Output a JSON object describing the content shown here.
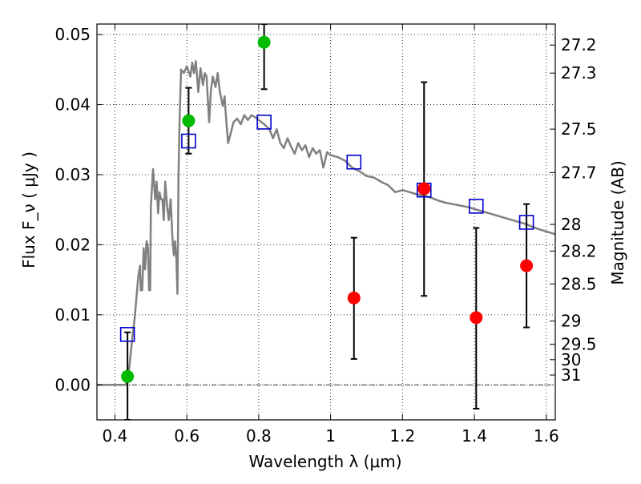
{
  "chart_data": {
    "type": "scatter",
    "xlabel": "Wavelength  λ (μm)",
    "ylabel_left": "Flux  F_ν  ( μJy )",
    "ylabel_right": "Magnitude (AB)",
    "xlim": [
      0.35,
      1.625
    ],
    "ylim": [
      -0.005,
      0.0515
    ],
    "x_ticks": [
      {
        "value": 0.4,
        "label": "0.4"
      },
      {
        "value": 0.6,
        "label": "0.6"
      },
      {
        "value": 0.8,
        "label": "0.8"
      },
      {
        "value": 1.0,
        "label": "1"
      },
      {
        "value": 1.2,
        "label": "1.2"
      },
      {
        "value": 1.4,
        "label": "1.4"
      },
      {
        "value": 1.6,
        "label": "1.6"
      }
    ],
    "y_ticks": [
      {
        "value": 0.0,
        "label": "0.00"
      },
      {
        "value": 0.01,
        "label": "0.01"
      },
      {
        "value": 0.02,
        "label": "0.02"
      },
      {
        "value": 0.03,
        "label": "0.03"
      },
      {
        "value": 0.04,
        "label": "0.04"
      },
      {
        "value": 0.05,
        "label": "0.05"
      }
    ],
    "magnitude_ticks": [
      {
        "flux": 0.0485,
        "label": "27.2"
      },
      {
        "flux": 0.0445,
        "label": "27.3"
      },
      {
        "flux": 0.0365,
        "label": "27.5"
      },
      {
        "flux": 0.0303,
        "label": "27.7"
      },
      {
        "flux": 0.0229,
        "label": "28"
      },
      {
        "flux": 0.0191,
        "label": "28.2"
      },
      {
        "flux": 0.0144,
        "label": "28.5"
      },
      {
        "flux": 0.0091,
        "label": "29"
      },
      {
        "flux": 0.0058,
        "label": "29.5"
      },
      {
        "flux": 0.0036,
        "label": "30"
      },
      {
        "flux": 0.0014,
        "label": "31"
      }
    ],
    "grid": true,
    "model_spectrum": {
      "color": "#808080",
      "points": [
        [
          0.35,
          0.0
        ],
        [
          0.43,
          0.0
        ],
        [
          0.435,
          0.0012
        ],
        [
          0.44,
          0.0025
        ],
        [
          0.445,
          0.005
        ],
        [
          0.45,
          0.0075
        ],
        [
          0.455,
          0.0095
        ],
        [
          0.46,
          0.0125
        ],
        [
          0.465,
          0.0155
        ],
        [
          0.47,
          0.017
        ],
        [
          0.472,
          0.0135
        ],
        [
          0.476,
          0.0135
        ],
        [
          0.48,
          0.0195
        ],
        [
          0.484,
          0.0165
        ],
        [
          0.488,
          0.0205
        ],
        [
          0.492,
          0.0195
        ],
        [
          0.495,
          0.0135
        ],
        [
          0.498,
          0.0135
        ],
        [
          0.5,
          0.0255
        ],
        [
          0.506,
          0.0308
        ],
        [
          0.512,
          0.0265
        ],
        [
          0.516,
          0.029
        ],
        [
          0.52,
          0.0245
        ],
        [
          0.524,
          0.0275
        ],
        [
          0.528,
          0.0265
        ],
        [
          0.532,
          0.0265
        ],
        [
          0.536,
          0.0235
        ],
        [
          0.54,
          0.029
        ],
        [
          0.545,
          0.0255
        ],
        [
          0.55,
          0.0235
        ],
        [
          0.555,
          0.0265
        ],
        [
          0.56,
          0.021
        ],
        [
          0.564,
          0.0185
        ],
        [
          0.567,
          0.0205
        ],
        [
          0.571,
          0.018
        ],
        [
          0.574,
          0.013
        ],
        [
          0.577,
          0.03
        ],
        [
          0.58,
          0.038
        ],
        [
          0.584,
          0.045
        ],
        [
          0.592,
          0.0445
        ],
        [
          0.6,
          0.0455
        ],
        [
          0.61,
          0.044
        ],
        [
          0.615,
          0.046
        ],
        [
          0.62,
          0.0445
        ],
        [
          0.625,
          0.0462
        ],
        [
          0.632,
          0.0418
        ],
        [
          0.638,
          0.0452
        ],
        [
          0.645,
          0.0428
        ],
        [
          0.65,
          0.0445
        ],
        [
          0.655,
          0.044
        ],
        [
          0.662,
          0.0375
        ],
        [
          0.667,
          0.042
        ],
        [
          0.672,
          0.044
        ],
        [
          0.68,
          0.0425
        ],
        [
          0.686,
          0.0445
        ],
        [
          0.692,
          0.0418
        ],
        [
          0.7,
          0.0398
        ],
        [
          0.705,
          0.0412
        ],
        [
          0.71,
          0.0375
        ],
        [
          0.715,
          0.0345
        ],
        [
          0.72,
          0.0355
        ],
        [
          0.73,
          0.0375
        ],
        [
          0.74,
          0.038
        ],
        [
          0.75,
          0.0372
        ],
        [
          0.76,
          0.0385
        ],
        [
          0.77,
          0.0378
        ],
        [
          0.78,
          0.0385
        ],
        [
          0.79,
          0.0382
        ],
        [
          0.8,
          0.0378
        ],
        [
          0.815,
          0.0372
        ],
        [
          0.83,
          0.0365
        ],
        [
          0.84,
          0.0352
        ],
        [
          0.85,
          0.0365
        ],
        [
          0.86,
          0.0345
        ],
        [
          0.87,
          0.0338
        ],
        [
          0.88,
          0.0352
        ],
        [
          0.89,
          0.034
        ],
        [
          0.9,
          0.033
        ],
        [
          0.91,
          0.0345
        ],
        [
          0.92,
          0.0335
        ],
        [
          0.93,
          0.0342
        ],
        [
          0.94,
          0.0325
        ],
        [
          0.95,
          0.0338
        ],
        [
          0.96,
          0.033
        ],
        [
          0.97,
          0.0335
        ],
        [
          0.98,
          0.031
        ],
        [
          0.99,
          0.0332
        ],
        [
          1.0,
          0.0328
        ],
        [
          1.02,
          0.0325
        ],
        [
          1.04,
          0.032
        ],
        [
          1.06,
          0.031
        ],
        [
          1.08,
          0.0305
        ],
        [
          1.1,
          0.0298
        ],
        [
          1.12,
          0.0296
        ],
        [
          1.14,
          0.029
        ],
        [
          1.16,
          0.0285
        ],
        [
          1.18,
          0.0275
        ],
        [
          1.2,
          0.0278
        ],
        [
          1.22,
          0.0275
        ],
        [
          1.24,
          0.0272
        ],
        [
          1.26,
          0.027
        ],
        [
          1.28,
          0.0267
        ],
        [
          1.3,
          0.0263
        ],
        [
          1.32,
          0.026
        ],
        [
          1.34,
          0.0258
        ],
        [
          1.36,
          0.0256
        ],
        [
          1.38,
          0.0254
        ],
        [
          1.4,
          0.0251
        ],
        [
          1.42,
          0.0248
        ],
        [
          1.44,
          0.0245
        ],
        [
          1.46,
          0.0242
        ],
        [
          1.48,
          0.0239
        ],
        [
          1.5,
          0.0236
        ],
        [
          1.52,
          0.0233
        ],
        [
          1.54,
          0.023
        ],
        [
          1.56,
          0.0226
        ],
        [
          1.58,
          0.0222
        ],
        [
          1.6,
          0.0219
        ],
        [
          1.625,
          0.0215
        ]
      ]
    },
    "model_photometry": {
      "color": "#0000cc",
      "marker": "square",
      "points": [
        {
          "x": 0.435,
          "y": 0.0072
        },
        {
          "x": 0.605,
          "y": 0.0348
        },
        {
          "x": 0.815,
          "y": 0.0375
        },
        {
          "x": 1.065,
          "y": 0.0318
        },
        {
          "x": 1.26,
          "y": 0.0278
        },
        {
          "x": 1.405,
          "y": 0.0255
        },
        {
          "x": 1.545,
          "y": 0.0232
        }
      ]
    },
    "observed_detections": {
      "color": "#00bb00",
      "marker": "circle",
      "points": [
        {
          "x": 0.435,
          "y": 0.0012,
          "yerr_low": -0.005,
          "yerr_high": 0.0075
        },
        {
          "x": 0.605,
          "y": 0.0377,
          "yerr_low": 0.033,
          "yerr_high": 0.0424
        },
        {
          "x": 0.815,
          "y": 0.0489,
          "yerr_low": 0.0422,
          "yerr_high": 0.0515
        }
      ]
    },
    "observed_other": {
      "color": "#ff0000",
      "marker": "circle",
      "points": [
        {
          "x": 1.065,
          "y": 0.0124,
          "yerr_low": 0.0037,
          "yerr_high": 0.021
        },
        {
          "x": 1.26,
          "y": 0.028,
          "yerr_low": 0.0127,
          "yerr_high": 0.0432
        },
        {
          "x": 1.405,
          "y": 0.0096,
          "yerr_low": -0.0034,
          "yerr_high": 0.0224
        },
        {
          "x": 1.545,
          "y": 0.017,
          "yerr_low": 0.0082,
          "yerr_high": 0.0258
        }
      ]
    }
  }
}
